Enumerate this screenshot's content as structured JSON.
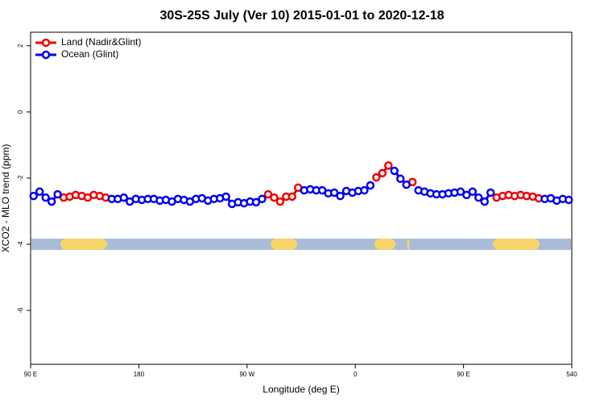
{
  "chart_data": {
    "type": "line",
    "title": "30S-25S July (Ver 10)   2015-01-01 to 2020-12-18",
    "x_label": "Longitude (deg E)",
    "y_label": "XCO2 - MLO trend (ppm)",
    "xlim": [
      90,
      540
    ],
    "ylim": [
      -7.63,
      2.41
    ],
    "xticks": [
      {
        "value": 90,
        "label": "90 E"
      },
      180,
      {
        "value": 270,
        "label": "90 W"
      },
      {
        "value": 360,
        "label": "0"
      },
      {
        "value": 450,
        "label": "90 E"
      },
      540
    ],
    "yticks": [
      -6,
      -4,
      -2,
      0,
      2
    ],
    "legend": "top-left",
    "mask_y": -4,
    "mask_colors": {
      "ocean": "#a8bcd8",
      "land": "#f8d36a"
    },
    "land_ranges": [
      [
        114.8,
        153.6
      ],
      [
        289.6,
        311.7
      ],
      [
        375.9,
        393.4
      ],
      [
        403,
        405
      ],
      [
        474.4,
        513.2
      ]
    ],
    "x": [
      92.5,
      97.5,
      102.5,
      107.5,
      112.5,
      117.5,
      122.5,
      127.5,
      132.5,
      137.5,
      142.5,
      147.5,
      152.5,
      157.5,
      162.5,
      167.5,
      172.5,
      177.5,
      182.5,
      187.5,
      192.5,
      197.5,
      202.5,
      207.5,
      212.5,
      217.5,
      222.5,
      227.5,
      232.5,
      237.5,
      242.5,
      247.5,
      252.5,
      257.5,
      262.5,
      267.5,
      272.5,
      277.5,
      282.5,
      287.5,
      292.5,
      297.5,
      302.5,
      307.5,
      312.5,
      317.5,
      322.5,
      327.5,
      332.5,
      337.5,
      342.5,
      347.5,
      352.5,
      357.5,
      362.5,
      367.5,
      372.5,
      377.5,
      382.5,
      387.5,
      392.5,
      397.5,
      402.5,
      407.5,
      412.5,
      417.5,
      422.5,
      427.5,
      432.5,
      437.5,
      442.5,
      447.5,
      452.5,
      457.5,
      462.5,
      467.5,
      472.5,
      477.5,
      482.5,
      487.5,
      492.5,
      497.5,
      502.5,
      507.5,
      512.5,
      517.5,
      522.5,
      527.5,
      532.5,
      537.5
    ],
    "series": [
      {
        "name": "Land (Nadir&Glint)",
        "color": "#ee0000",
        "values": [
          null,
          null,
          null,
          null,
          null,
          -2.59,
          -2.56,
          -2.51,
          -2.54,
          -2.59,
          -2.51,
          -2.54,
          -2.59,
          null,
          null,
          null,
          null,
          null,
          null,
          null,
          null,
          null,
          null,
          null,
          null,
          null,
          null,
          null,
          null,
          null,
          null,
          null,
          null,
          null,
          null,
          null,
          null,
          null,
          null,
          -2.49,
          -2.59,
          -2.71,
          -2.56,
          -2.56,
          -2.29,
          null,
          null,
          null,
          null,
          null,
          null,
          null,
          null,
          null,
          null,
          null,
          null,
          -1.98,
          -1.85,
          -1.62,
          null,
          null,
          null,
          -2.12,
          null,
          null,
          null,
          null,
          null,
          null,
          null,
          null,
          null,
          null,
          null,
          null,
          null,
          -2.59,
          -2.54,
          -2.51,
          -2.54,
          -2.51,
          -2.54,
          -2.56,
          -2.61,
          null,
          null,
          null,
          null,
          null
        ]
      },
      {
        "name": "Ocean (Glint)",
        "color": "#0000ee",
        "values": [
          -2.54,
          -2.41,
          -2.59,
          -2.71,
          -2.49,
          null,
          null,
          null,
          null,
          null,
          null,
          null,
          null,
          -2.63,
          -2.63,
          -2.59,
          -2.71,
          -2.63,
          -2.66,
          -2.63,
          -2.63,
          -2.68,
          -2.66,
          -2.71,
          -2.63,
          -2.66,
          -2.71,
          -2.63,
          -2.61,
          -2.68,
          -2.63,
          -2.61,
          -2.56,
          -2.78,
          -2.73,
          -2.76,
          -2.71,
          -2.73,
          -2.63,
          null,
          null,
          null,
          null,
          null,
          null,
          -2.37,
          -2.34,
          -2.37,
          -2.37,
          -2.46,
          -2.44,
          -2.54,
          -2.39,
          -2.44,
          -2.39,
          -2.37,
          -2.22,
          null,
          null,
          null,
          -1.78,
          -2.02,
          -2.2,
          null,
          -2.37,
          -2.41,
          -2.46,
          -2.49,
          -2.49,
          -2.46,
          -2.44,
          -2.41,
          -2.51,
          -2.41,
          -2.59,
          -2.71,
          -2.44,
          null,
          null,
          null,
          null,
          null,
          null,
          null,
          null,
          -2.63,
          -2.61,
          -2.68,
          -2.63,
          -2.66
        ]
      }
    ]
  }
}
